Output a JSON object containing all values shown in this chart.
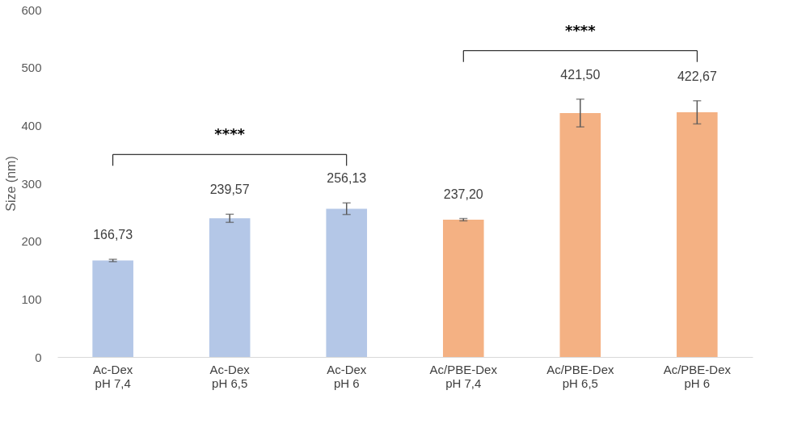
{
  "chart_data": {
    "type": "bar",
    "ylabel": "Size (nm)",
    "categories": [
      "Ac-Dex\npH 7,4",
      "Ac-Dex\npH 6,5",
      "Ac-Dex\npH 6",
      "Ac/PBE-Dex\npH 7,4",
      "Ac/PBE-Dex\npH 6,5",
      "Ac/PBE-Dex\npH 6"
    ],
    "values": [
      166.73,
      239.57,
      256.13,
      237.2,
      421.5,
      422.67
    ],
    "colors": [
      "#b4c7e7",
      "#b4c7e7",
      "#b4c7e7",
      "#f4b183",
      "#f4b183",
      "#f4b183"
    ],
    "errors": [
      2,
      7,
      10,
      2,
      24,
      20
    ],
    "value_labels": [
      "166,73",
      "239,57",
      "256,13",
      "237,20",
      "421,50",
      "422,67"
    ],
    "annotations": [
      "****",
      "****"
    ],
    "ylim": [
      0,
      600
    ],
    "yticks": [
      0,
      100,
      200,
      300,
      400,
      500,
      600
    ],
    "grid": false
  }
}
